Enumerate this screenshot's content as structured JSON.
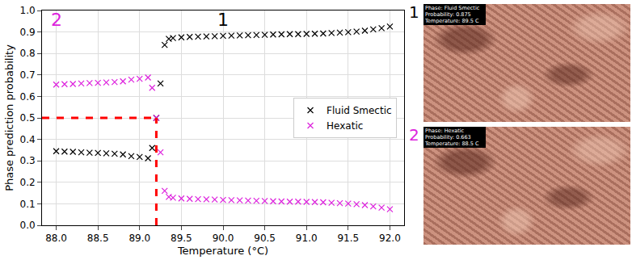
{
  "chart_data": {
    "type": "scatter",
    "x_label": "Temperature (°C)",
    "y_label": "Phase prediction probability",
    "x": [
      88.0,
      88.1,
      88.2,
      88.3,
      88.4,
      88.5,
      88.6,
      88.7,
      88.8,
      88.9,
      89.0,
      89.1,
      89.15,
      89.2,
      89.25,
      89.3,
      89.35,
      89.4,
      89.5,
      89.6,
      89.7,
      89.8,
      89.9,
      90.0,
      90.1,
      90.2,
      90.3,
      90.4,
      90.5,
      90.6,
      90.7,
      90.8,
      90.9,
      91.0,
      91.1,
      91.2,
      91.3,
      91.4,
      91.5,
      91.6,
      91.7,
      91.8,
      91.9,
      92.0
    ],
    "series": [
      {
        "name": "Fluid Smectic",
        "color": "#000000",
        "marker": "x",
        "values": [
          0.345,
          0.343,
          0.342,
          0.34,
          0.338,
          0.337,
          0.335,
          0.333,
          0.33,
          0.322,
          0.318,
          0.312,
          0.36,
          0.5,
          0.66,
          0.84,
          0.868,
          0.872,
          0.875,
          0.877,
          0.878,
          0.879,
          0.88,
          0.882,
          0.883,
          0.884,
          0.885,
          0.886,
          0.887,
          0.888,
          0.889,
          0.89,
          0.89,
          0.891,
          0.892,
          0.893,
          0.895,
          0.897,
          0.899,
          0.902,
          0.906,
          0.912,
          0.918,
          0.925
        ]
      },
      {
        "name": "Hexatic",
        "color": "#dd22dd",
        "marker": "x",
        "values": [
          0.655,
          0.657,
          0.658,
          0.66,
          0.662,
          0.663,
          0.665,
          0.667,
          0.67,
          0.678,
          0.682,
          0.688,
          0.64,
          0.5,
          0.34,
          0.16,
          0.132,
          0.128,
          0.125,
          0.123,
          0.122,
          0.121,
          0.12,
          0.118,
          0.117,
          0.116,
          0.115,
          0.114,
          0.113,
          0.112,
          0.111,
          0.11,
          0.11,
          0.109,
          0.108,
          0.107,
          0.105,
          0.103,
          0.101,
          0.098,
          0.094,
          0.088,
          0.082,
          0.075
        ]
      }
    ],
    "xlim": [
      87.83,
      92.17
    ],
    "xticks": [
      {
        "value": 88,
        "label": "88.0"
      },
      88.5,
      {
        "value": 89,
        "label": "89.0"
      },
      89.5,
      {
        "value": 90,
        "label": "90.0"
      },
      90.5,
      {
        "value": 91,
        "label": "91.0"
      },
      91.5,
      {
        "value": 92,
        "label": "92.0"
      }
    ],
    "ylim": [
      0,
      1
    ],
    "yticks": [
      {
        "value": 0,
        "label": "0.0"
      },
      0.1,
      0.2,
      0.3,
      0.4,
      0.5,
      0.6,
      0.7,
      0.8,
      0.9,
      {
        "value": 1,
        "label": "1.0"
      }
    ],
    "grid": true,
    "legend": "center right",
    "reference_lines": {
      "x": 89.2,
      "y": 0.5,
      "color": "#ff0000",
      "line_style": "dashed"
    },
    "annotations": [
      {
        "text": "1",
        "x": 90.0,
        "y": 0.955,
        "color": "#000000"
      },
      {
        "text": "2",
        "x": 88.0,
        "y": 0.955,
        "color": "#dd22dd"
      }
    ]
  },
  "panels": [
    {
      "label": "1",
      "label_color": "#000000",
      "lines": [
        "Phase: Fluid Smectic",
        "Probability: 0.875",
        "Temperature: 89.5 C"
      ]
    },
    {
      "label": "2",
      "label_color": "#dd22dd",
      "lines": [
        "Phase: Hexatic",
        "Probability: 0.663",
        "Temperature: 88.5 C"
      ]
    }
  ]
}
